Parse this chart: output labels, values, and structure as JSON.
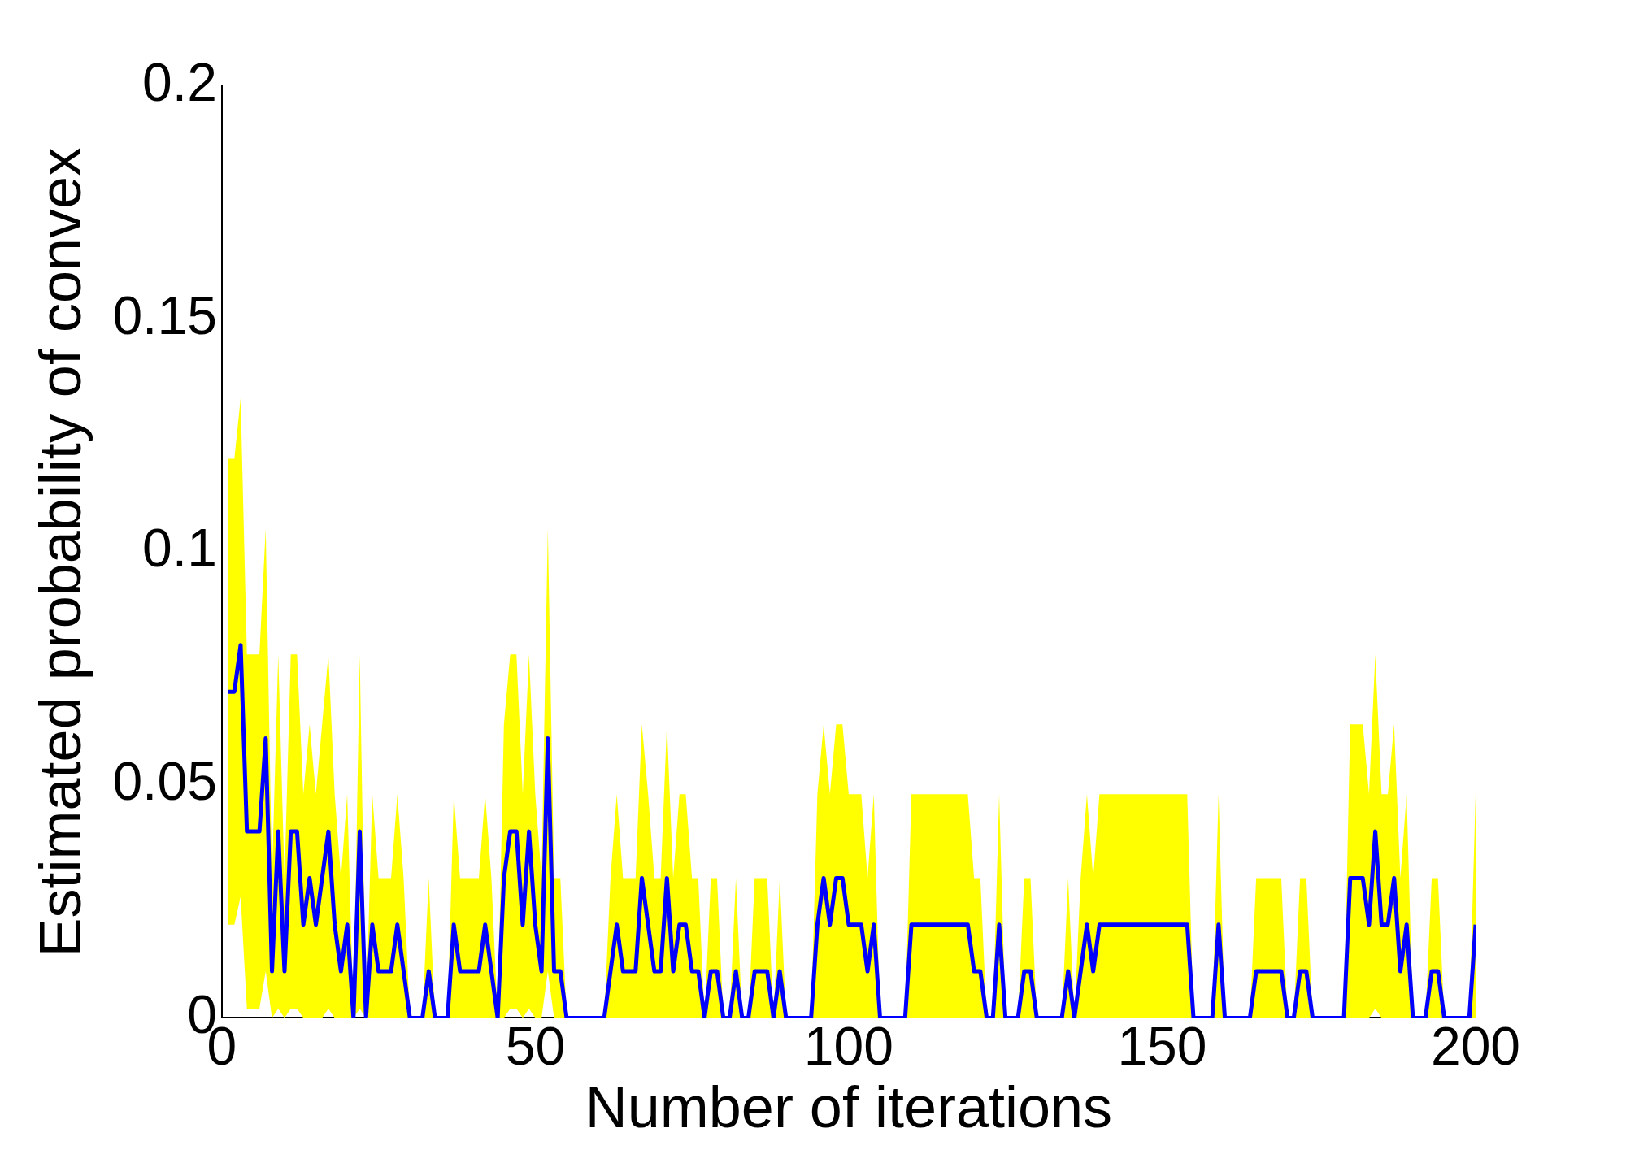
{
  "chart_data": {
    "type": "line",
    "xlabel": "Number of iterations",
    "ylabel": "Estimated probability of convex",
    "xlim": [
      0,
      200
    ],
    "xticks": [
      0,
      50,
      100,
      150,
      200
    ],
    "ylim": [
      0,
      0.2
    ],
    "yticks": [
      0,
      0.05,
      0.1,
      0.15,
      0.2
    ],
    "grid": false,
    "legend": false,
    "x": [
      1,
      2,
      3,
      4,
      5,
      6,
      7,
      8,
      9,
      10,
      11,
      12,
      13,
      14,
      15,
      16,
      17,
      18,
      19,
      20,
      21,
      22,
      23,
      24,
      25,
      26,
      27,
      28,
      29,
      30,
      31,
      32,
      33,
      34,
      35,
      36,
      37,
      38,
      39,
      40,
      41,
      42,
      43,
      44,
      45,
      46,
      47,
      48,
      49,
      50,
      51,
      52,
      53,
      54,
      55,
      56,
      57,
      58,
      59,
      60,
      61,
      62,
      63,
      64,
      65,
      66,
      67,
      68,
      69,
      70,
      71,
      72,
      73,
      74,
      75,
      76,
      77,
      78,
      79,
      80,
      81,
      82,
      83,
      84,
      85,
      86,
      87,
      88,
      89,
      90,
      91,
      92,
      93,
      94,
      95,
      96,
      97,
      98,
      99,
      100,
      101,
      102,
      103,
      104,
      105,
      106,
      107,
      108,
      109,
      110,
      111,
      112,
      113,
      114,
      115,
      116,
      117,
      118,
      119,
      120,
      121,
      122,
      123,
      124,
      125,
      126,
      127,
      128,
      129,
      130,
      131,
      132,
      133,
      134,
      135,
      136,
      137,
      138,
      139,
      140,
      141,
      142,
      143,
      144,
      145,
      146,
      147,
      148,
      149,
      150,
      151,
      152,
      153,
      154,
      155,
      156,
      157,
      158,
      159,
      160,
      161,
      162,
      163,
      164,
      165,
      166,
      167,
      168,
      169,
      170,
      171,
      172,
      173,
      174,
      175,
      176,
      177,
      178,
      179,
      180,
      181,
      182,
      183,
      184,
      185,
      186,
      187,
      188,
      189,
      190,
      191,
      192,
      193,
      194,
      195,
      196,
      197,
      198,
      199,
      200
    ],
    "series": [
      {
        "type": "line",
        "color": "#0000ff",
        "values": [
          0.07,
          0.07,
          0.08,
          0.04,
          0.04,
          0.04,
          0.06,
          0.01,
          0.04,
          0.01,
          0.04,
          0.04,
          0.02,
          0.03,
          0.02,
          0.03,
          0.04,
          0.02,
          0.01,
          0.02,
          0,
          0.04,
          0,
          0.02,
          0.01,
          0.01,
          0.01,
          0.02,
          0.01,
          0,
          0,
          0,
          0.01,
          0,
          0,
          0,
          0.02,
          0.01,
          0.01,
          0.01,
          0.01,
          0.02,
          0.01,
          0,
          0.03,
          0.04,
          0.04,
          0.02,
          0.04,
          0.02,
          0.01,
          0.06,
          0.01,
          0.01,
          0,
          0,
          0,
          0,
          0,
          0,
          0,
          0.01,
          0.02,
          0.01,
          0.01,
          0.01,
          0.03,
          0.02,
          0.01,
          0.01,
          0.03,
          0.01,
          0.02,
          0.02,
          0.01,
          0.01,
          0,
          0.01,
          0.01,
          0,
          0,
          0.01,
          0,
          0,
          0.01,
          0.01,
          0.01,
          0,
          0.01,
          0,
          0,
          0,
          0,
          0,
          0.02,
          0.03,
          0.02,
          0.03,
          0.03,
          0.02,
          0.02,
          0.02,
          0.01,
          0.02,
          0,
          0,
          0,
          0,
          0,
          0.02,
          0.02,
          0.02,
          0.02,
          0.02,
          0.02,
          0.02,
          0.02,
          0.02,
          0.02,
          0.01,
          0.01,
          0,
          0,
          0.02,
          0,
          0,
          0,
          0.01,
          0.01,
          0,
          0,
          0,
          0,
          0,
          0.01,
          0,
          0.01,
          0.02,
          0.01,
          0.02,
          0.02,
          0.02,
          0.02,
          0.02,
          0.02,
          0.02,
          0.02,
          0.02,
          0.02,
          0.02,
          0.02,
          0.02,
          0.02,
          0.02,
          0,
          0,
          0,
          0,
          0.02,
          0,
          0,
          0,
          0,
          0,
          0.01,
          0.01,
          0.01,
          0.01,
          0.01,
          0,
          0,
          0.01,
          0.01,
          0,
          0,
          0,
          0,
          0,
          0,
          0.03,
          0.03,
          0.03,
          0.02,
          0.04,
          0.02,
          0.02,
          0.03,
          0.01,
          0.02,
          0,
          0,
          0,
          0.01,
          0.01,
          0,
          0,
          0,
          0,
          0,
          0.02
        ],
        "upper": [
          0.12,
          0.12,
          0.133,
          0.078,
          0.078,
          0.078,
          0.105,
          0.03,
          0.078,
          0.03,
          0.078,
          0.078,
          0.048,
          0.063,
          0.048,
          0.063,
          0.078,
          0.048,
          0.03,
          0.048,
          0,
          0.078,
          0,
          0.048,
          0.03,
          0.03,
          0.03,
          0.048,
          0.03,
          0,
          0,
          0,
          0.03,
          0,
          0,
          0,
          0.048,
          0.03,
          0.03,
          0.03,
          0.03,
          0.048,
          0.03,
          0,
          0.063,
          0.078,
          0.078,
          0.048,
          0.078,
          0.048,
          0.03,
          0.105,
          0.03,
          0.03,
          0,
          0,
          0,
          0,
          0,
          0,
          0,
          0.03,
          0.048,
          0.03,
          0.03,
          0.03,
          0.063,
          0.048,
          0.03,
          0.03,
          0.063,
          0.03,
          0.048,
          0.048,
          0.03,
          0.03,
          0,
          0.03,
          0.03,
          0,
          0,
          0.03,
          0,
          0,
          0.03,
          0.03,
          0.03,
          0,
          0.03,
          0,
          0,
          0,
          0,
          0,
          0.048,
          0.063,
          0.048,
          0.063,
          0.063,
          0.048,
          0.048,
          0.048,
          0.03,
          0.048,
          0,
          0,
          0,
          0,
          0,
          0.048,
          0.048,
          0.048,
          0.048,
          0.048,
          0.048,
          0.048,
          0.048,
          0.048,
          0.048,
          0.03,
          0.03,
          0,
          0,
          0.048,
          0,
          0,
          0,
          0.03,
          0.03,
          0,
          0,
          0,
          0,
          0,
          0.03,
          0,
          0.03,
          0.048,
          0.03,
          0.048,
          0.048,
          0.048,
          0.048,
          0.048,
          0.048,
          0.048,
          0.048,
          0.048,
          0.048,
          0.048,
          0.048,
          0.048,
          0.048,
          0.048,
          0,
          0,
          0,
          0,
          0.048,
          0,
          0,
          0,
          0,
          0,
          0.03,
          0.03,
          0.03,
          0.03,
          0.03,
          0,
          0,
          0.03,
          0.03,
          0,
          0,
          0,
          0,
          0,
          0,
          0.063,
          0.063,
          0.063,
          0.048,
          0.078,
          0.048,
          0.048,
          0.063,
          0.03,
          0.048,
          0,
          0,
          0,
          0.03,
          0.03,
          0,
          0,
          0,
          0,
          0,
          0.048
        ],
        "lower": [
          0.02,
          0.02,
          0.026,
          0.002,
          0.002,
          0.002,
          0.01,
          0,
          0.002,
          0,
          0.002,
          0.002,
          0,
          0,
          0,
          0,
          0.002,
          0,
          0,
          0,
          0,
          0.002,
          0,
          0,
          0,
          0,
          0,
          0,
          0,
          0,
          0,
          0,
          0,
          0,
          0,
          0,
          0,
          0,
          0,
          0,
          0,
          0,
          0,
          0,
          0,
          0.002,
          0.002,
          0,
          0.002,
          0,
          0,
          0.01,
          0,
          0,
          0,
          0,
          0,
          0,
          0,
          0,
          0,
          0,
          0,
          0,
          0,
          0,
          0,
          0,
          0,
          0,
          0,
          0,
          0,
          0,
          0,
          0,
          0,
          0,
          0,
          0,
          0,
          0,
          0,
          0,
          0,
          0,
          0,
          0,
          0,
          0,
          0,
          0,
          0,
          0,
          0,
          0,
          0,
          0,
          0,
          0,
          0,
          0,
          0,
          0,
          0,
          0,
          0,
          0,
          0,
          0,
          0,
          0,
          0,
          0,
          0,
          0,
          0,
          0,
          0,
          0,
          0,
          0,
          0,
          0,
          0,
          0,
          0,
          0,
          0,
          0,
          0,
          0,
          0,
          0,
          0,
          0,
          0,
          0,
          0,
          0,
          0,
          0,
          0,
          0,
          0,
          0,
          0,
          0,
          0,
          0,
          0,
          0,
          0,
          0,
          0,
          0,
          0,
          0,
          0,
          0,
          0,
          0,
          0,
          0,
          0,
          0,
          0,
          0,
          0,
          0,
          0,
          0,
          0,
          0,
          0,
          0,
          0,
          0,
          0,
          0,
          0,
          0,
          0,
          0.002,
          0,
          0,
          0,
          0,
          0,
          0,
          0,
          0,
          0,
          0,
          0,
          0,
          0,
          0,
          0,
          0
        ]
      }
    ]
  }
}
